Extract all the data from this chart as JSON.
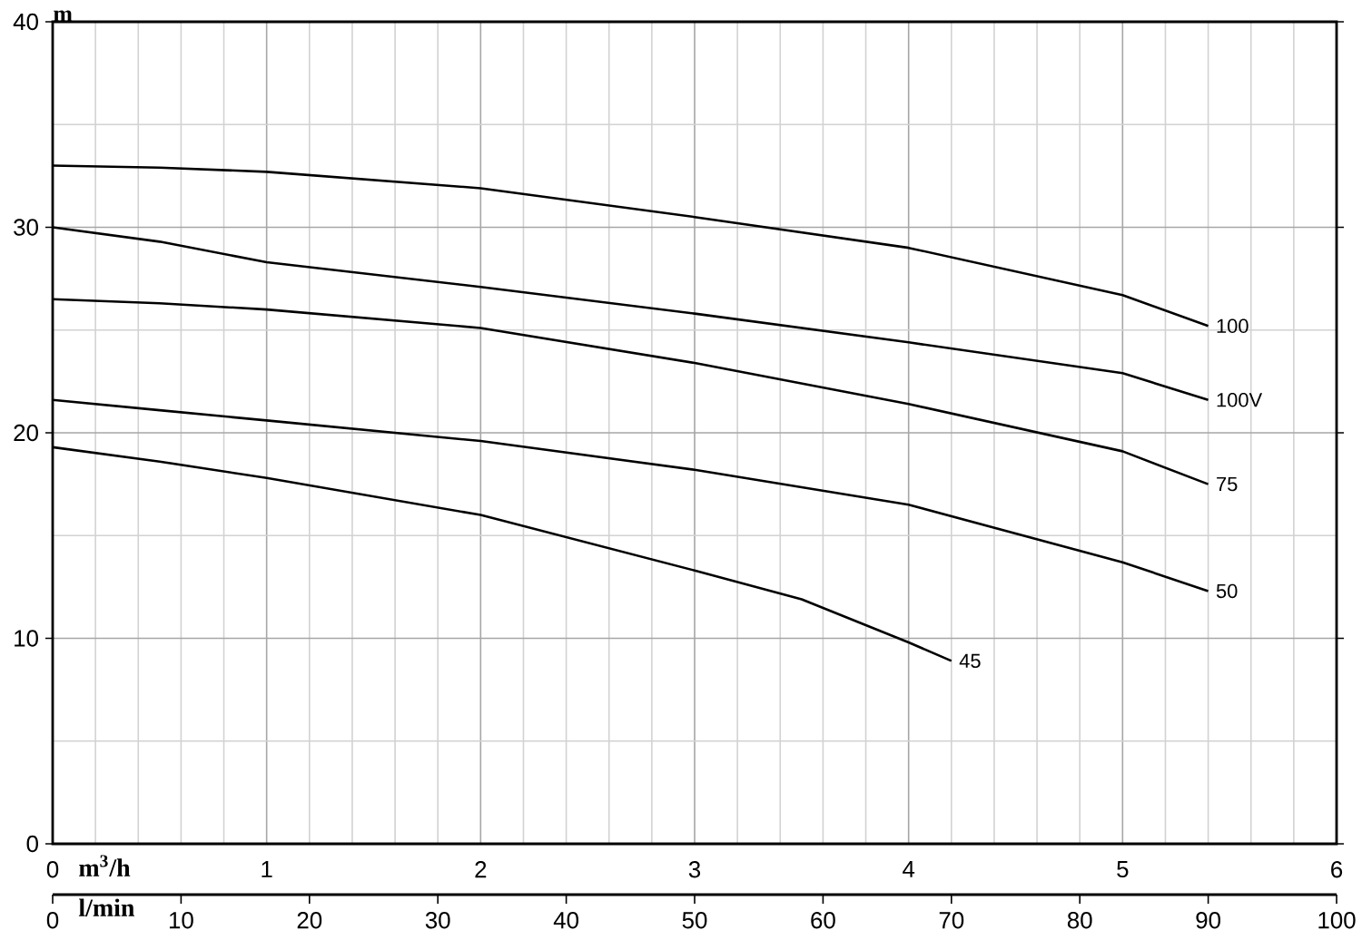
{
  "chart_data": {
    "type": "line",
    "ylabel": "m",
    "xlabel": "m$^{3}$/h",
    "x2label": "l/min",
    "xlim": [
      0,
      6
    ],
    "xticks": [
      0,
      1,
      2,
      3,
      4,
      5,
      6
    ],
    "x2lim": [
      0,
      100
    ],
    "x2ticks": [
      0,
      10,
      20,
      30,
      40,
      50,
      60,
      70,
      80,
      90,
      100
    ],
    "ylim": [
      0,
      40
    ],
    "yticks": [
      0,
      10,
      20,
      30,
      40
    ],
    "grid": true,
    "marker": "none",
    "line_style": "solid",
    "x": [
      0,
      0.5,
      1,
      2,
      3,
      4,
      5,
      5.4
    ],
    "series": [
      {
        "name": "100",
        "color": "#000000",
        "values": [
          33.0,
          32.9,
          32.7,
          31.9,
          30.5,
          29.0,
          26.7,
          25.2
        ]
      },
      {
        "name": "100V",
        "color": "#000000",
        "values": [
          30.0,
          29.3,
          28.3,
          27.1,
          25.8,
          24.4,
          22.9,
          21.6
        ]
      },
      {
        "name": "75",
        "color": "#000000",
        "values": [
          26.5,
          26.3,
          26.0,
          25.1,
          23.4,
          21.4,
          19.1,
          17.5
        ]
      },
      {
        "name": "50",
        "color": "#000000",
        "values": [
          21.6,
          21.1,
          20.6,
          19.6,
          18.2,
          16.5,
          13.7,
          12.3
        ]
      },
      {
        "name": "45",
        "color": "#000000",
        "x": [
          0,
          0.5,
          1,
          2,
          3,
          3.5,
          4,
          4.2
        ],
        "values": [
          19.3,
          18.6,
          17.8,
          16.0,
          13.3,
          11.9,
          9.8,
          8.9
        ]
      }
    ]
  }
}
